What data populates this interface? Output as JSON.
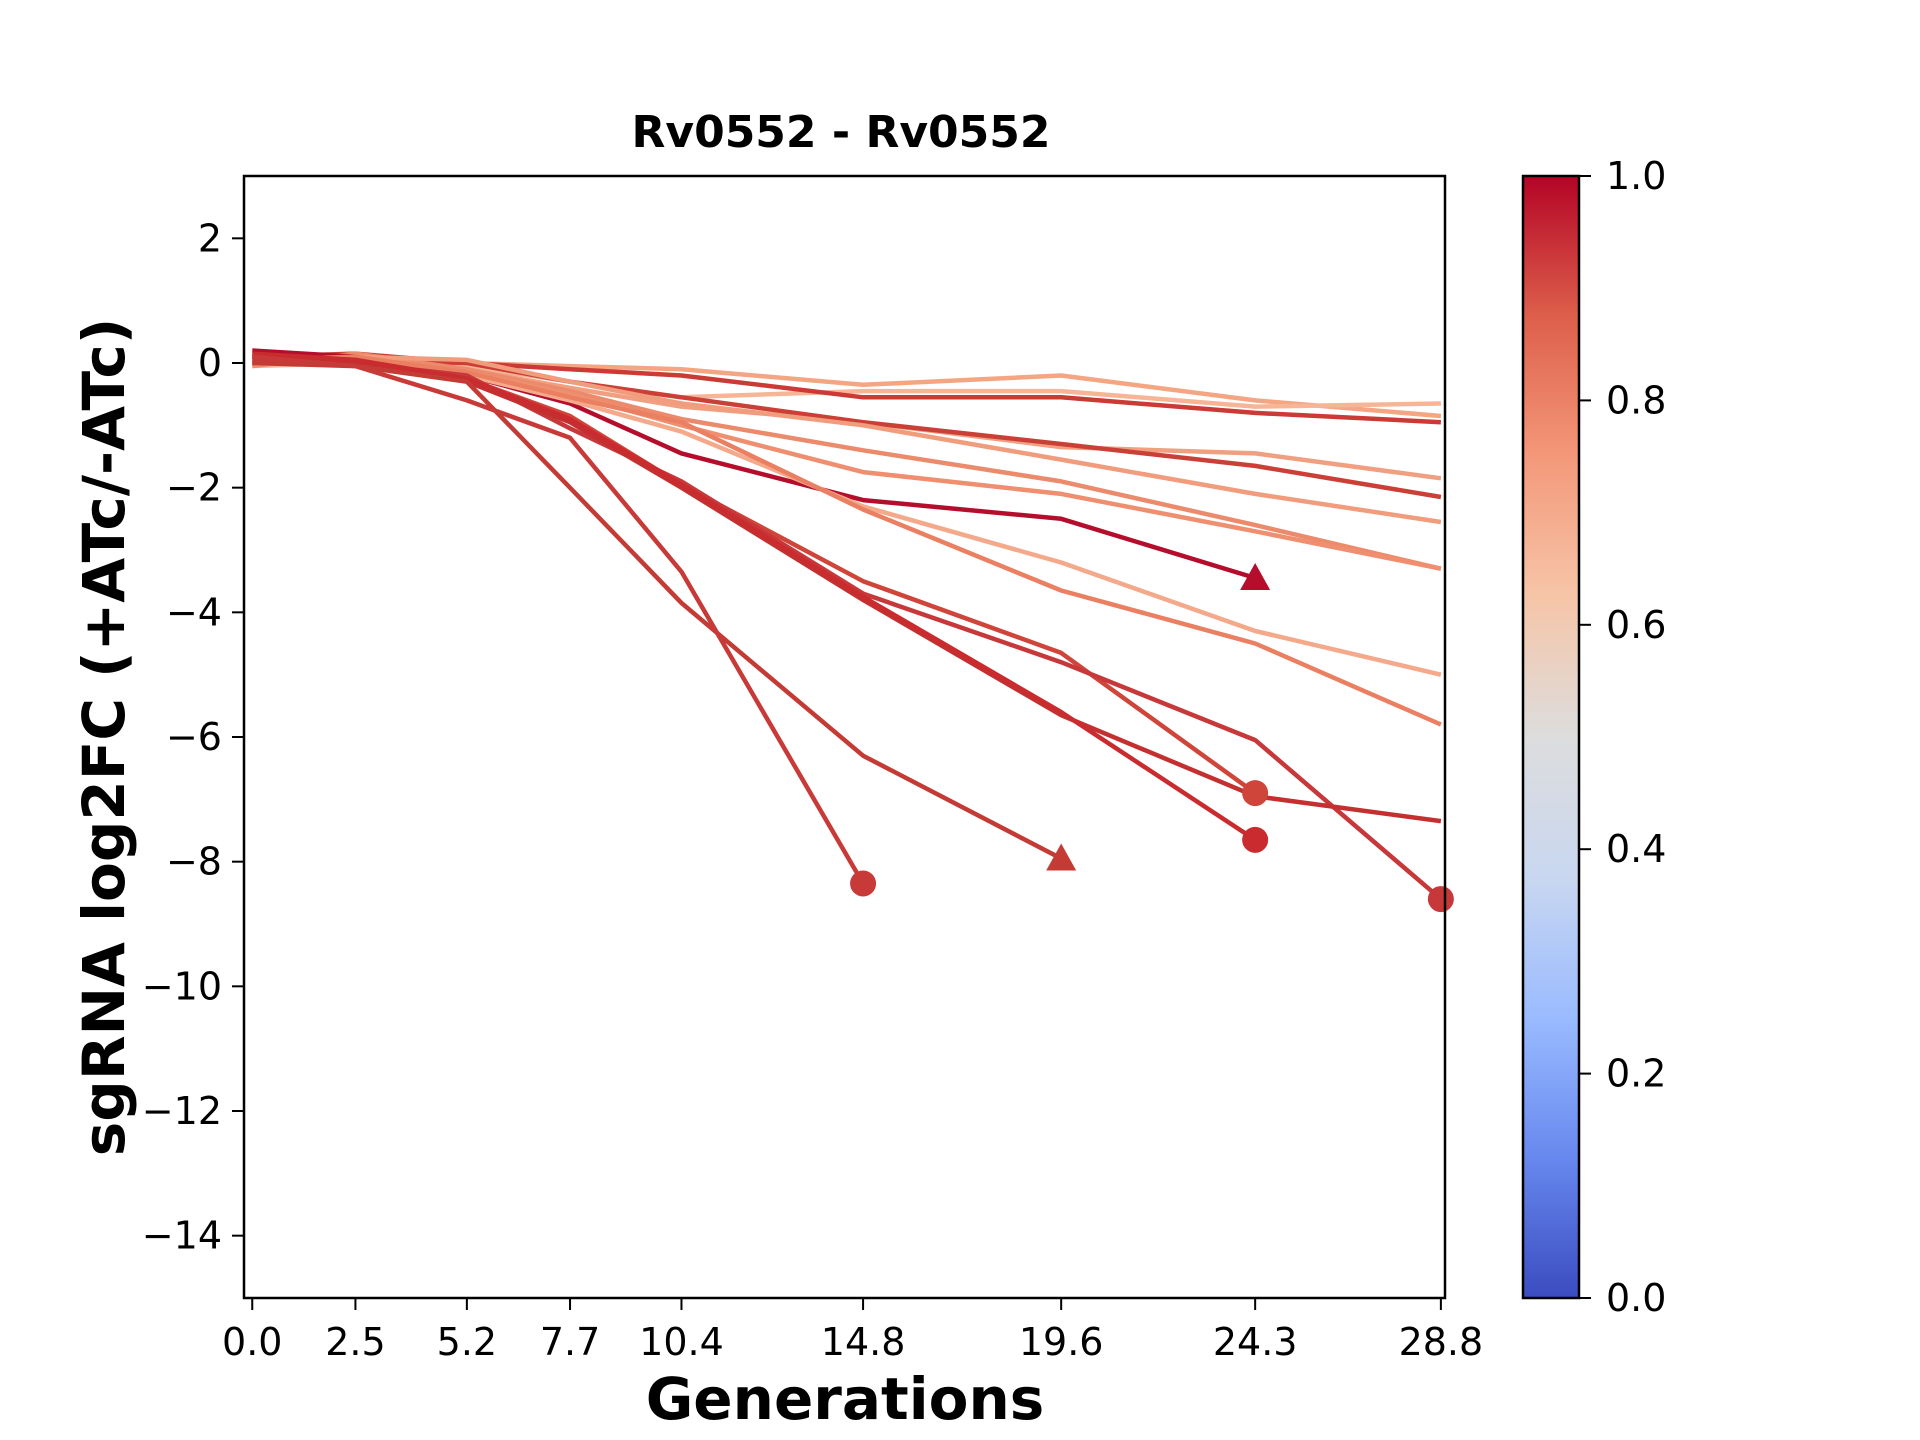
{
  "chart_data": {
    "type": "line",
    "title": "Rv0552 - Rv0552",
    "xlabel": "Generations",
    "ylabel": "sgRNA log2FC (+ATc/-ATc)",
    "x_tick_labels": [
      "0.0",
      "2.5",
      "5.2",
      "7.7",
      "10.4",
      "14.8",
      "19.6",
      "24.3",
      "28.8"
    ],
    "x_ticks": [
      0.0,
      2.5,
      5.2,
      7.7,
      10.4,
      14.8,
      19.6,
      24.3,
      28.8
    ],
    "y_ticks": [
      2,
      0,
      -2,
      -4,
      -6,
      -8,
      -10,
      -12,
      -14
    ],
    "y_tick_labels": [
      "2",
      "0",
      "−2",
      "−4",
      "−6",
      "−8",
      "−10",
      "−12",
      "−14"
    ],
    "xlim": [
      -0.2,
      28.9
    ],
    "ylim": [
      -15,
      3
    ],
    "grid": false,
    "colorbar": {
      "colormap": "coolwarm",
      "range": [
        0.0,
        1.0
      ],
      "ticks": [
        0.0,
        0.2,
        0.4,
        0.6,
        0.8,
        1.0
      ],
      "tick_labels": [
        "0.0",
        "0.2",
        "0.4",
        "0.6",
        "0.8",
        "1.0"
      ],
      "stops": [
        "#3b4cc0",
        "#6788ee",
        "#9abbff",
        "#c9d7f0",
        "#dddddd",
        "#f6c5a8",
        "#f4987a",
        "#dd5f4b",
        "#b40426"
      ]
    },
    "series": [
      {
        "color": "#f4a582",
        "x": [
          0.0,
          2.5,
          5.2,
          7.7,
          10.4,
          14.8,
          19.6,
          24.3,
          28.8
        ],
        "y": [
          0.0,
          0.05,
          0.0,
          -0.05,
          -0.1,
          -0.35,
          -0.2,
          -0.6,
          -0.85
        ],
        "marker": null
      },
      {
        "color": "#f6b596",
        "x": [
          0.0,
          2.5,
          5.2,
          7.7,
          10.4,
          14.8,
          19.6,
          24.3,
          28.8
        ],
        "y": [
          -0.05,
          0.0,
          -0.05,
          -0.3,
          -0.55,
          -0.45,
          -0.45,
          -0.7,
          -0.65
        ],
        "marker": null
      },
      {
        "color": "#cc3a35",
        "x": [
          0.0,
          2.5,
          5.2,
          7.7,
          10.4,
          14.8,
          19.6,
          24.3,
          28.8
        ],
        "y": [
          0.1,
          0.05,
          0.0,
          -0.1,
          -0.2,
          -0.55,
          -0.55,
          -0.8,
          -0.95
        ],
        "marker": null
      },
      {
        "color": "#f0a080",
        "x": [
          0.0,
          2.5,
          5.2,
          7.7,
          10.4,
          14.8,
          19.6,
          24.3,
          28.8
        ],
        "y": [
          0.0,
          0.1,
          -0.1,
          -0.4,
          -0.7,
          -0.95,
          -1.35,
          -1.45,
          -1.85
        ],
        "marker": null
      },
      {
        "color": "#cb4036",
        "x": [
          0.0,
          2.5,
          5.2,
          7.7,
          10.4,
          14.8,
          19.6,
          24.3,
          28.8
        ],
        "y": [
          0.1,
          0.15,
          0.0,
          -0.3,
          -0.55,
          -0.95,
          -1.3,
          -1.65,
          -2.15
        ],
        "marker": null
      },
      {
        "color": "#ec8b6c",
        "x": [
          0.0,
          2.5,
          5.2,
          7.7,
          10.4,
          14.8,
          19.6,
          24.3,
          28.8
        ],
        "y": [
          -0.05,
          0.15,
          -0.1,
          -0.45,
          -0.9,
          -1.4,
          -1.9,
          -2.6,
          -3.3
        ],
        "marker": null
      },
      {
        "color": "#ef8f70",
        "x": [
          0.0,
          2.5,
          5.2,
          7.7,
          10.4,
          14.8,
          19.6,
          24.3,
          28.8
        ],
        "y": [
          0.0,
          0.1,
          -0.15,
          -0.5,
          -1.0,
          -1.75,
          -2.1,
          -2.7,
          -3.3
        ],
        "marker": null
      },
      {
        "color": "#f19c7c",
        "x": [
          0.0,
          2.5,
          5.2,
          7.7,
          10.4,
          14.8,
          19.6,
          24.3,
          28.8
        ],
        "y": [
          0.05,
          0.1,
          0.05,
          -0.3,
          -0.65,
          -1.0,
          -1.55,
          -2.1,
          -2.55
        ],
        "marker": null
      },
      {
        "color": "#b50d2c",
        "x": [
          0.0,
          2.5,
          5.2,
          7.7,
          10.4,
          14.8,
          19.6,
          24.3
        ],
        "y": [
          0.2,
          0.1,
          -0.2,
          -0.65,
          -1.45,
          -2.2,
          -2.5,
          -3.45
        ],
        "marker": "triangle"
      },
      {
        "color": "#f4a98a",
        "x": [
          0.0,
          2.5,
          5.2,
          7.7,
          10.4,
          14.8,
          19.6,
          24.3,
          28.8
        ],
        "y": [
          0.0,
          0.05,
          -0.2,
          -0.6,
          -1.1,
          -2.3,
          -3.2,
          -4.3,
          -5.0
        ],
        "marker": null
      },
      {
        "color": "#ea7f62",
        "x": [
          0.0,
          2.5,
          5.2,
          7.7,
          10.4,
          14.8,
          19.6,
          24.3,
          28.8
        ],
        "y": [
          0.05,
          0.1,
          -0.15,
          -0.55,
          -0.95,
          -2.35,
          -3.65,
          -4.5,
          -5.8
        ],
        "marker": null
      },
      {
        "color": "#cf453a",
        "x": [
          0.0,
          2.5,
          5.2,
          7.7,
          10.4,
          14.8,
          19.6,
          24.3
        ],
        "y": [
          0.1,
          0.05,
          -0.25,
          -0.85,
          -1.95,
          -3.5,
          -4.65,
          -6.9
        ],
        "marker": "circle"
      },
      {
        "color": "#c7383a",
        "x": [
          0.0,
          2.5,
          5.2,
          7.7,
          10.4,
          14.8,
          19.6,
          24.3,
          28.8
        ],
        "y": [
          0.05,
          0.0,
          -0.2,
          -1.05,
          -1.9,
          -3.7,
          -4.8,
          -6.05,
          -8.6
        ],
        "marker": "circle"
      },
      {
        "color": "#c4302f",
        "x": [
          0.0,
          2.5,
          5.2,
          7.7,
          10.4,
          14.8,
          19.6,
          24.3,
          28.8
        ],
        "y": [
          0.1,
          0.0,
          -0.3,
          -0.95,
          -2.0,
          -3.8,
          -5.65,
          -6.95,
          -7.35
        ],
        "marker": null
      },
      {
        "color": "#c92b2e",
        "x": [
          0.0,
          2.5,
          5.2,
          7.7,
          10.4,
          14.8,
          19.6,
          24.3
        ],
        "y": [
          0.15,
          0.05,
          -0.25,
          -0.9,
          -1.95,
          -3.75,
          -5.6,
          -7.65
        ],
        "marker": "circle"
      },
      {
        "color": "#c43b36",
        "x": [
          0.0,
          2.5,
          5.2,
          7.7,
          10.4,
          14.8,
          19.6
        ],
        "y": [
          0.0,
          -0.05,
          -0.3,
          -2.0,
          -3.85,
          -6.3,
          -7.95
        ],
        "marker": "triangle"
      },
      {
        "color": "#c83a38",
        "x": [
          0.0,
          2.5,
          5.2,
          7.7,
          10.4,
          14.8
        ],
        "y": [
          0.1,
          -0.05,
          -0.6,
          -1.2,
          -3.35,
          -8.35
        ],
        "marker": "circle"
      }
    ]
  }
}
